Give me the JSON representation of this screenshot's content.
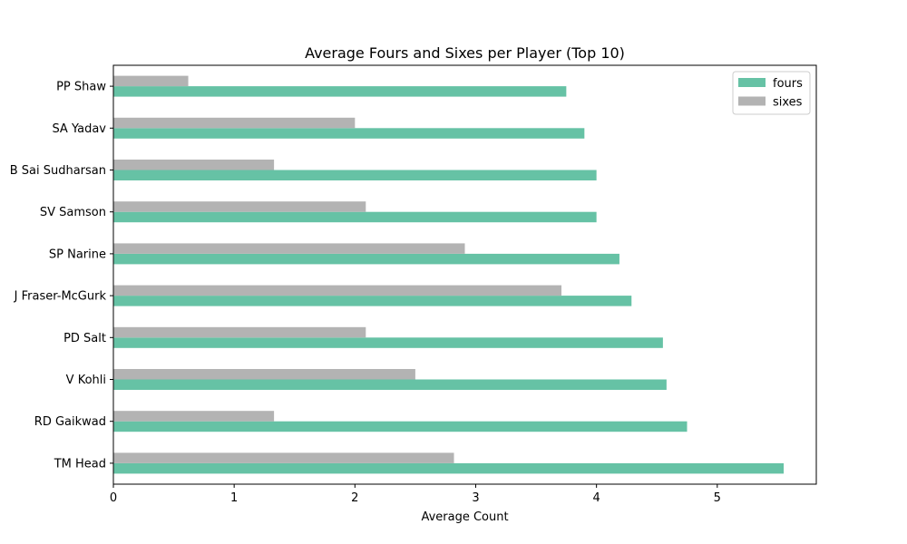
{
  "chart_data": {
    "type": "bar",
    "orientation": "horizontal",
    "title": "Average Fours and Sixes per Player (Top 10)",
    "xlabel": "Average Count",
    "ylabel": "",
    "xlim": [
      0,
      5.82
    ],
    "xticks": [
      0,
      1,
      2,
      3,
      4,
      5
    ],
    "grid": false,
    "legend_position": "top-right",
    "categories": [
      "TM Head",
      "RD Gaikwad",
      "V Kohli",
      "PD Salt",
      "J Fraser-McGurk",
      "SP Narine",
      "SV Samson",
      "B Sai Sudharsan",
      "SA Yadav",
      "PP Shaw"
    ],
    "series": [
      {
        "name": "fours",
        "color": "#66c2a5",
        "values": [
          5.55,
          4.75,
          4.58,
          4.55,
          4.29,
          4.19,
          4.0,
          4.0,
          3.9,
          3.75
        ]
      },
      {
        "name": "sixes",
        "color": "#b3b3b3",
        "values": [
          2.82,
          1.33,
          2.5,
          2.09,
          3.71,
          2.91,
          2.09,
          1.33,
          2.0,
          0.62
        ]
      }
    ]
  }
}
